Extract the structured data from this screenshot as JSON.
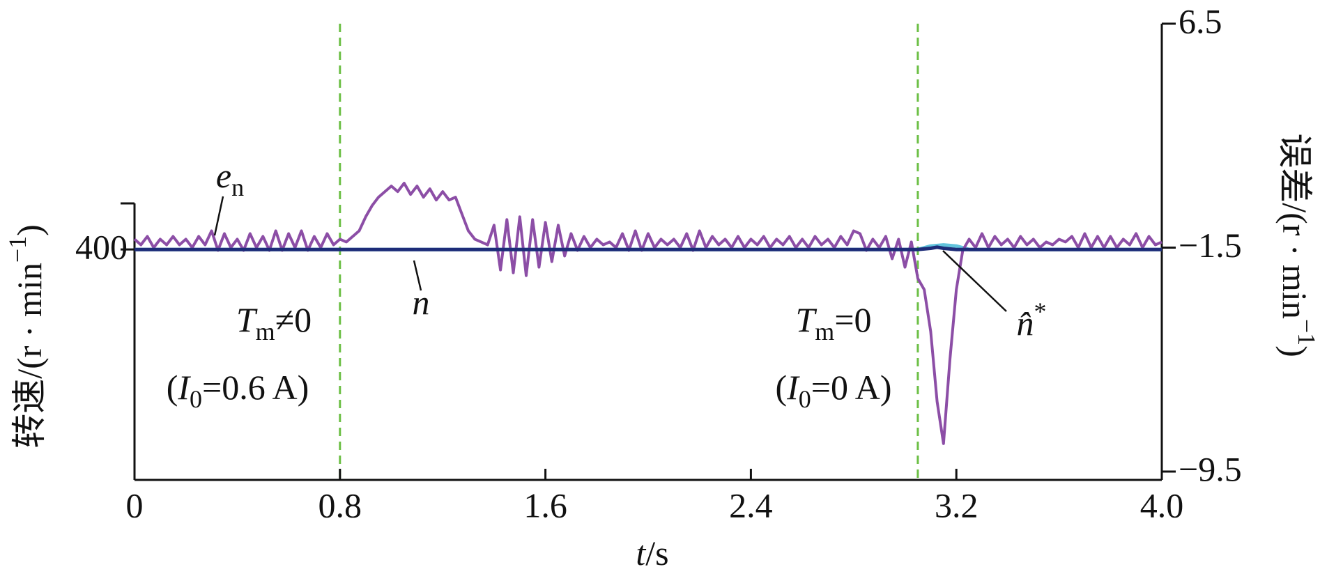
{
  "chart_data": {
    "type": "line",
    "xlabel": [
      {
        "text": "t",
        "style": "italic"
      },
      {
        "text": "/s"
      }
    ],
    "ylabel": [
      {
        "text": "转速/(r · min"
      },
      {
        "text": "−1",
        "style": "sup"
      },
      {
        "text": ")"
      }
    ],
    "y2label": [
      {
        "text": "误差/(r · min"
      },
      {
        "text": "−1",
        "style": "sup"
      },
      {
        "text": ")"
      }
    ],
    "xlim": [
      0,
      4
    ],
    "xticks": [
      0,
      0.8,
      1.6,
      2.4,
      3.2,
      {
        "value": 4,
        "label": "4.0"
      }
    ],
    "ylim": [
      300,
      420
    ],
    "yticks": [
      400
    ],
    "y2lim": [
      -9.8,
      6.5
    ],
    "y2ticks": [
      6.5,
      {
        "value": -1.5,
        "label": "−1.5"
      },
      {
        "value": -9.5,
        "label": "−9.5"
      }
    ],
    "vlines": [
      0.8,
      3.05
    ],
    "vline_color": "#6cbf45",
    "series": [
      {
        "name": "n",
        "color": "#62c3dc",
        "x": [
          0,
          3.05,
          3.1,
          3.15,
          3.2,
          3.25,
          4
        ],
        "values": [
          400,
          400,
          401.5,
          402,
          401.5,
          400,
          400
        ]
      },
      {
        "name": "e_n",
        "color": "#8c4ea6",
        "axis": "y2",
        "x": [
          0,
          0.025,
          0.05,
          0.075,
          0.1,
          0.125,
          0.15,
          0.175,
          0.2,
          0.225,
          0.25,
          0.275,
          0.3,
          0.325,
          0.35,
          0.375,
          0.4,
          0.425,
          0.45,
          0.475,
          0.5,
          0.525,
          0.55,
          0.575,
          0.6,
          0.625,
          0.65,
          0.675,
          0.7,
          0.725,
          0.75,
          0.775,
          0.8,
          0.825,
          0.85,
          0.875,
          0.9,
          0.925,
          0.95,
          0.975,
          1,
          1.025,
          1.05,
          1.075,
          1.1,
          1.125,
          1.15,
          1.175,
          1.2,
          1.225,
          1.25,
          1.275,
          1.3,
          1.325,
          1.35,
          1.375,
          1.4,
          1.425,
          1.45,
          1.475,
          1.5,
          1.525,
          1.55,
          1.575,
          1.6,
          1.625,
          1.65,
          1.675,
          1.7,
          1.725,
          1.75,
          1.775,
          1.8,
          1.825,
          1.85,
          1.875,
          1.9,
          1.925,
          1.95,
          1.975,
          2,
          2.025,
          2.05,
          2.075,
          2.1,
          2.125,
          2.15,
          2.175,
          2.2,
          2.225,
          2.25,
          2.275,
          2.3,
          2.325,
          2.35,
          2.375,
          2.4,
          2.425,
          2.45,
          2.475,
          2.5,
          2.525,
          2.55,
          2.575,
          2.6,
          2.625,
          2.65,
          2.675,
          2.7,
          2.725,
          2.75,
          2.775,
          2.8,
          2.825,
          2.85,
          2.875,
          2.9,
          2.925,
          2.95,
          2.975,
          3,
          3.025,
          3.05,
          3.075,
          3.1,
          3.125,
          3.15,
          3.175,
          3.2,
          3.225,
          3.25,
          3.275,
          3.3,
          3.325,
          3.35,
          3.375,
          3.4,
          3.425,
          3.45,
          3.475,
          3.5,
          3.525,
          3.55,
          3.575,
          3.6,
          3.625,
          3.65,
          3.675,
          3.7,
          3.725,
          3.75,
          3.775,
          3.8,
          3.825,
          3.85,
          3.875,
          3.9,
          3.925,
          3.95,
          3.975,
          4
        ],
        "values": [
          -1.2,
          -1.4,
          -1.1,
          -1.5,
          -1.2,
          -1.4,
          -1.1,
          -1.4,
          -1.2,
          -1.5,
          -1.1,
          -1.4,
          -0.9,
          -1.6,
          -1.0,
          -1.5,
          -1.2,
          -1.6,
          -1.0,
          -1.5,
          -1.1,
          -1.6,
          -0.9,
          -1.6,
          -1.0,
          -1.5,
          -0.9,
          -1.6,
          -1.1,
          -1.5,
          -1.0,
          -1.4,
          -1.2,
          -1.3,
          -1.1,
          -0.9,
          -0.4,
          0.0,
          0.3,
          0.5,
          0.7,
          0.5,
          0.8,
          0.4,
          0.7,
          0.3,
          0.6,
          0.2,
          0.5,
          0.2,
          0.3,
          -0.3,
          -0.9,
          -1.2,
          -1.3,
          -1.4,
          -0.7,
          -2.3,
          -0.5,
          -2.4,
          -0.4,
          -2.5,
          -0.5,
          -2.2,
          -0.6,
          -2.0,
          -0.7,
          -1.8,
          -1.0,
          -1.6,
          -1.1,
          -1.5,
          -1.2,
          -1.4,
          -1.3,
          -1.5,
          -1.0,
          -1.6,
          -0.9,
          -1.6,
          -1.0,
          -1.5,
          -1.2,
          -1.4,
          -1.2,
          -1.5,
          -1.0,
          -1.6,
          -0.9,
          -1.5,
          -1.1,
          -1.4,
          -1.2,
          -1.5,
          -1.1,
          -1.5,
          -1.2,
          -1.4,
          -1.1,
          -1.5,
          -1.2,
          -1.4,
          -1.1,
          -1.5,
          -1.2,
          -1.5,
          -1.1,
          -1.4,
          -1.2,
          -1.5,
          -1.1,
          -1.4,
          -0.9,
          -1.0,
          -1.6,
          -1.2,
          -1.5,
          -1.1,
          -1.9,
          -1.2,
          -2.2,
          -1.3,
          -2.6,
          -3.0,
          -4.5,
          -7.0,
          -8.5,
          -5.5,
          -3.0,
          -1.6,
          -1.2,
          -1.5,
          -1.0,
          -1.5,
          -1.1,
          -1.4,
          -1.2,
          -1.5,
          -1.1,
          -1.4,
          -1.2,
          -1.5,
          -1.3,
          -1.4,
          -1.2,
          -1.3,
          -1.1,
          -1.5,
          -1.0,
          -1.5,
          -1.1,
          -1.5,
          -1.1,
          -1.5,
          -1.2,
          -1.4,
          -1.0,
          -1.5,
          -1.1,
          -1.4,
          -1.3
        ]
      },
      {
        "name": "n̂*",
        "color": "#1d2c78",
        "x": [
          0,
          3.05,
          3.1,
          3.125,
          3.15,
          3.2,
          4
        ],
        "values": [
          400,
          400,
          400.5,
          401,
          400.5,
          400,
          400
        ]
      }
    ],
    "annotations": [
      {
        "parts": [
          {
            "text": "e",
            "style": "italic"
          },
          {
            "text": "n",
            "style": "sub"
          }
        ]
      },
      {
        "parts": [
          {
            "text": "n",
            "style": "italic"
          }
        ]
      },
      {
        "parts": [
          {
            "text": "n̂",
            "style": "italic"
          },
          {
            "text": "*",
            "style": "sup"
          }
        ]
      },
      {
        "parts": [
          {
            "text": "T",
            "style": "italic"
          },
          {
            "text": "m",
            "style": "sub"
          },
          {
            "text": "≠0"
          }
        ]
      },
      {
        "parts": [
          {
            "text": "("
          },
          {
            "text": "I",
            "style": "italic"
          },
          {
            "text": "0",
            "style": "sub"
          },
          {
            "text": "=0.6 A)"
          }
        ]
      },
      {
        "parts": [
          {
            "text": "T",
            "style": "italic"
          },
          {
            "text": "m",
            "style": "sub"
          },
          {
            "text": "=0"
          }
        ]
      },
      {
        "parts": [
          {
            "text": "("
          },
          {
            "text": "I",
            "style": "italic"
          },
          {
            "text": "0",
            "style": "sub"
          },
          {
            "text": "=0 A)"
          }
        ]
      }
    ]
  }
}
